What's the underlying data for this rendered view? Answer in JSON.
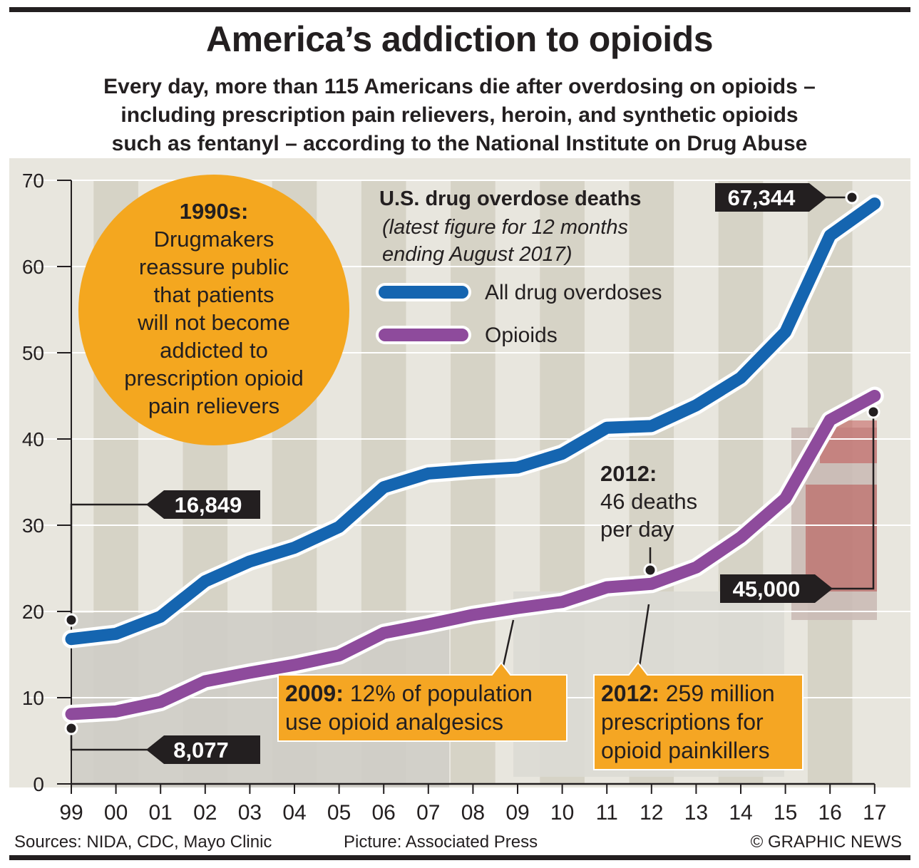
{
  "header": {
    "title": "America’s addiction to opioids",
    "subtitle_lines": [
      "Every day, more than 115 Americans die after overdosing on opioids –",
      "including prescription pain relievers, heroin, and synthetic opioids",
      "such as fentanyl – according to the National Institute on Drug Abuse"
    ]
  },
  "chart_data": {
    "type": "line",
    "title": "U.S. drug overdose deaths",
    "subtitle_lines": [
      "(latest figure for 12 months",
      "ending August 2017)"
    ],
    "categories": [
      "99",
      "00",
      "01",
      "02",
      "03",
      "04",
      "05",
      "06",
      "07",
      "08",
      "09",
      "10",
      "11",
      "12",
      "13",
      "14",
      "15",
      "16",
      "17"
    ],
    "y_ticks": [
      0,
      10,
      20,
      30,
      40,
      50,
      60,
      70
    ],
    "ylim": [
      0,
      70
    ],
    "units": "thousands",
    "series": [
      {
        "name": "All drug overdoses",
        "color": "#1565b0",
        "values": [
          16.8,
          17.4,
          19.4,
          23.5,
          25.8,
          27.4,
          29.8,
          34.4,
          36.0,
          36.4,
          36.7,
          38.3,
          41.3,
          41.5,
          43.9,
          47.1,
          52.4,
          63.6,
          67.3
        ]
      },
      {
        "name": "Opioids",
        "color": "#8e4b9c",
        "values": [
          8.1,
          8.4,
          9.5,
          11.9,
          12.9,
          13.8,
          14.9,
          17.5,
          18.5,
          19.6,
          20.4,
          21.1,
          22.8,
          23.2,
          25.1,
          28.6,
          33.1,
          42.2,
          45.0
        ]
      }
    ],
    "annotations": {
      "start_all": "16,849",
      "start_opioids": "8,077",
      "end_all": "67,344",
      "end_opioids": "45,000",
      "circle_title": "1990s:",
      "circle_lines": [
        "Drugmakers",
        "reassure public",
        "that patients",
        "will not become",
        "addicted to",
        "prescription opioid",
        "pain relievers"
      ],
      "note_2012_title": "2012:",
      "note_2012_lines": [
        "46 deaths",
        "per day"
      ],
      "box_2009_bold": "2009:",
      "box_2009_line1": " 12% of population",
      "box_2009_line2": "use opioid analgesics",
      "box_2012_bold": "2012:",
      "box_2012_line1": " 259 million",
      "box_2012_line2": "prescriptions for",
      "box_2012_line3": "opioid painkillers"
    },
    "colors": {
      "all_line": "#1565b0",
      "opioid_line": "#8e4b9c",
      "circle_fill": "#f4a71f",
      "box_fill": "#f5a623",
      "tag_fill": "#231f20",
      "plot_bg": "#e8e6de",
      "stripe": "#d6d3c6"
    }
  },
  "footer": {
    "sources": "Sources: NIDA, CDC, Mayo Clinic",
    "picture": "Picture: Associated Press",
    "credit": "© GRAPHIC NEWS"
  }
}
